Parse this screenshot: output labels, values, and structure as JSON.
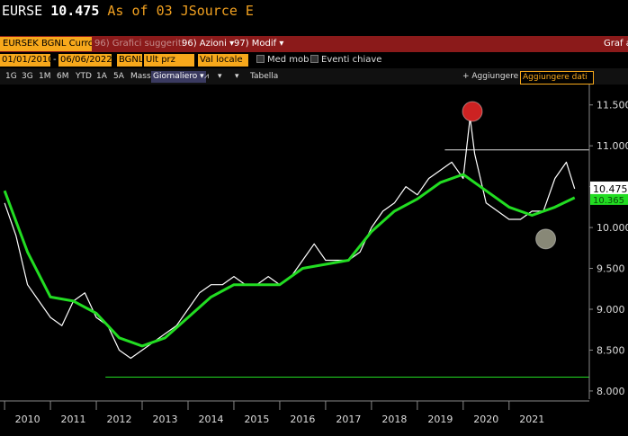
{
  "header": {
    "symbol": "EURSE",
    "price": "10.475",
    "as_of": "As of 03",
    "source": "JSource E"
  },
  "toolbar1": {
    "security": "EURSEK BGNL Currc",
    "suggested": "96) Grafici suggeriti",
    "actions": "96) Azioni",
    "modify": "97) Modif",
    "graph": "Graf a"
  },
  "toolbar2": {
    "start_date": "01/01/2010",
    "end_date": "06/06/2022",
    "source": "BGNL",
    "price_field": "Ult prz",
    "currency": "Val locale",
    "moving_avg": "Med mob",
    "key_events": "Eventi chiave"
  },
  "toolbar3": {
    "periods": [
      "1G",
      "3G",
      "1M",
      "6M",
      "YTD",
      "1A",
      "5A",
      "Mass"
    ],
    "frequency": "Giornaliero",
    "table": "Tabella",
    "add": "+ Aggiungere",
    "add_data": "Aggiungere dati"
  },
  "chart_data": {
    "type": "line",
    "series": [
      {
        "name": "",
        "color": "#ffffff",
        "x": [
          2010.0,
          2010.25,
          2010.5,
          2010.75,
          2011.0,
          2011.25,
          2011.5,
          2011.75,
          2012.0,
          2012.25,
          2012.5,
          2012.75,
          2013.0,
          2013.25,
          2013.5,
          2013.75,
          2014.0,
          2014.25,
          2014.5,
          2014.75,
          2015.0,
          2015.25,
          2015.5,
          2015.75,
          2016.0,
          2016.25,
          2016.5,
          2016.75,
          2017.0,
          2017.25,
          2017.5,
          2017.75,
          2018.0,
          2018.25,
          2018.5,
          2018.75,
          2019.0,
          2019.25,
          2019.5,
          2019.75,
          2020.0,
          2020.15,
          2020.25,
          2020.5,
          2020.75,
          2021.0,
          2021.25,
          2021.5,
          2021.75,
          2022.0,
          2022.25,
          2022.43
        ],
        "y": [
          10.3,
          9.9,
          9.3,
          9.1,
          8.9,
          8.8,
          9.1,
          9.2,
          8.9,
          8.8,
          8.5,
          8.4,
          8.5,
          8.6,
          8.7,
          8.8,
          9.0,
          9.2,
          9.3,
          9.3,
          9.4,
          9.3,
          9.3,
          9.4,
          9.3,
          9.4,
          9.6,
          9.8,
          9.6,
          9.6,
          9.6,
          9.7,
          10.0,
          10.2,
          10.3,
          10.5,
          10.4,
          10.6,
          10.7,
          10.8,
          10.6,
          11.35,
          10.9,
          10.3,
          10.2,
          10.1,
          10.1,
          10.2,
          10.2,
          10.6,
          10.8,
          10.475
        ]
      },
      {
        "name": "",
        "color": "#22dd22",
        "x": [
          2010.0,
          2010.5,
          2011.0,
          2011.5,
          2012.0,
          2012.5,
          2013.0,
          2013.5,
          2014.0,
          2014.5,
          2015.0,
          2015.5,
          2016.0,
          2016.5,
          2017.0,
          2017.5,
          2018.0,
          2018.5,
          2019.0,
          2019.5,
          2020.0,
          2020.5,
          2021.0,
          2021.5,
          2022.0,
          2022.43
        ],
        "y": [
          10.45,
          9.7,
          9.15,
          9.1,
          8.95,
          8.65,
          8.55,
          8.65,
          8.9,
          9.15,
          9.3,
          9.3,
          9.3,
          9.5,
          9.55,
          9.6,
          9.95,
          10.2,
          10.35,
          10.55,
          10.65,
          10.45,
          10.25,
          10.15,
          10.25,
          10.365
        ]
      }
    ],
    "x_tick_labels": [
      "2010",
      "2011",
      "2012",
      "2013",
      "2014",
      "2015",
      "2016",
      "2017",
      "2018",
      "2019",
      "2020",
      "2021"
    ],
    "y_tick_labels": [
      "11.500",
      "11.000",
      "10.500",
      "10.000",
      "9.500",
      "9.000",
      "8.500",
      "8.000"
    ],
    "ylim": [
      7.9,
      11.75
    ],
    "xlim": [
      2009.9,
      2022.75
    ],
    "last_price_label": "10.475",
    "ma_label": "10.365",
    "reference_lines": {
      "high": 10.95,
      "low": 8.17
    },
    "markers": [
      {
        "x": 2020.2,
        "y": 11.42,
        "color": "#cc2222"
      },
      {
        "x": 2021.8,
        "y": 9.86,
        "color": "#888877"
      }
    ],
    "grid": false
  }
}
